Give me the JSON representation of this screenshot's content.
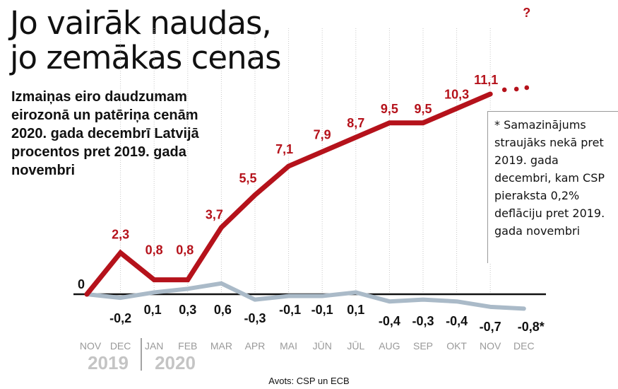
{
  "title": "Jo vairāk naudas, jo zemākas cenas",
  "subtitle": "Izmaiņas eiro daudzumam eirozonā un patēriņa cenām 2020. gada decembrī Latvijā procentos pret 2019. gada novembri",
  "note": "* Samazinājums straujāks nekā pret 2019. gada decembri, kam CSP pieraksta 0,2% deflāciju pret 2019. gada novembri",
  "source": "Avots: CSP un ECB",
  "chart_data": {
    "type": "line",
    "categories": [
      "NOV",
      "DEC",
      "JAN",
      "FEB",
      "MAR",
      "APR",
      "MAI",
      "JŪN",
      "JŪL",
      "AUG",
      "SEP",
      "OKT",
      "NOV",
      "DEC"
    ],
    "years": [
      "2019",
      "2020"
    ],
    "series": [
      {
        "color": "#b5121b",
        "values": [
          0,
          2.3,
          0.8,
          0.8,
          3.7,
          5.5,
          7.1,
          7.9,
          8.7,
          9.5,
          9.5,
          10.3,
          11.1,
          null
        ],
        "labels": [
          "0",
          "2,3",
          "0,8",
          "0,8",
          "3,7",
          "5,5",
          "7,1",
          "7,9",
          "8,7",
          "9,5",
          "9,5",
          "10,3",
          "11,1",
          "?"
        ]
      },
      {
        "color": "#aabac8",
        "values": [
          0,
          -0.2,
          0.1,
          0.3,
          0.6,
          -0.3,
          -0.1,
          -0.1,
          0.1,
          -0.4,
          -0.3,
          -0.4,
          -0.7,
          -0.8
        ],
        "labels": [
          "",
          "-0,2",
          "0,1",
          "0,3",
          "0,6",
          "-0,3",
          "-0,1",
          "-0,1",
          "0,1",
          "-0,4",
          "-0,3",
          "-0,4",
          "-0,7",
          "-0,8*"
        ]
      }
    ],
    "ylim": [
      -0.8,
      11.1
    ],
    "grid": "vertical"
  }
}
